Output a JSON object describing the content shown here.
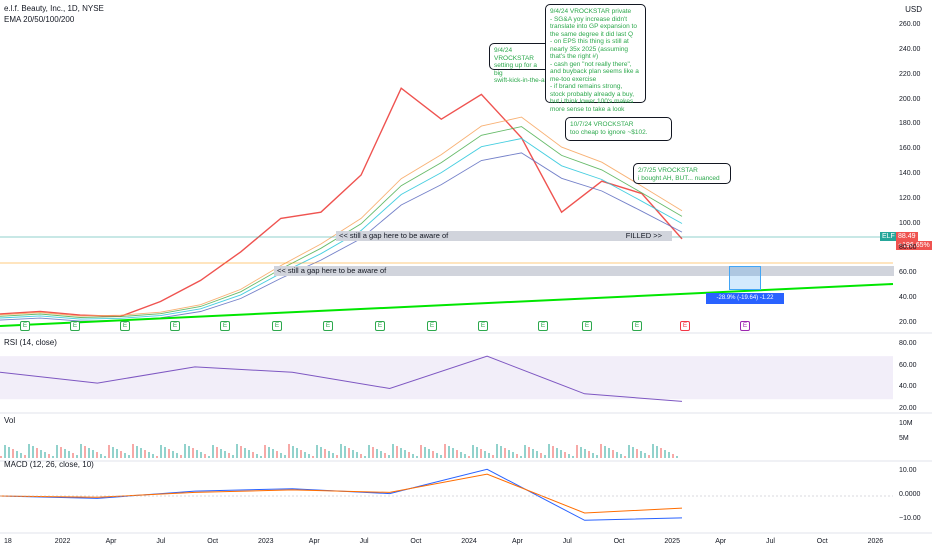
{
  "header": {
    "symbol_line": "e.l.f. Beauty, Inc., 1D, NYSE",
    "indicator_line": "EMA 20/50/100/200",
    "currency": "USD"
  },
  "price_axis": [
    "260.00",
    "240.00",
    "220.00",
    "200.00",
    "180.00",
    "160.00",
    "140.00",
    "120.00",
    "100.00",
    "80.00",
    "60.00",
    "40.00",
    "20.00"
  ],
  "rsi_axis": [
    "80.00",
    "60.00",
    "40.00",
    "20.00"
  ],
  "vol_axis": [
    "10M",
    "5M"
  ],
  "macd_axis": [
    "10.00",
    "0.0000",
    "−10.00"
  ],
  "time_axis": [
    "18",
    "2022",
    "Apr",
    "Jul",
    "Oct",
    "2023",
    "Apr",
    "Jul",
    "Oct",
    "2024",
    "Apr",
    "Jul",
    "Oct",
    "2025",
    "Apr",
    "Jul",
    "Oct",
    "2026"
  ],
  "last_price_tag": {
    "symbol": "ELF",
    "price": "88.49",
    "change": "+196.65%"
  },
  "panes": {
    "rsi_title": "RSI (14, close)",
    "vol_title": "Vol",
    "macd_title": "MACD (12, 26, close, 10)"
  },
  "annotations": {
    "gap_upper": "<< still a gap here to be aware of",
    "gap_upper_filled": "FILLED >>",
    "gap_lower": "<< still a gap here to be aware of",
    "callout_1": "9/4/24 VROCKSTAR\nsetting up for a big\nswift-kick-in-the-a",
    "callout_2": "9/4/24 VROCKSTAR private\n- SG&A yoy increase didn't\ntranslate into GP expansion to\nthe same degree it did last Q\n- on EPS this thing is still at\nnearly 35x 2025 (assuming\nthat's the right #)\n- cash gen \"not really there\",\nand buyback plan seems like a\nme-too exercise\n- if brand remains strong,\nstock probably already a buy,\nbut i think lower 100's makes\nmore sense to take a look",
    "callout_3": "10/7/24 VROCKSTAR\ntoo cheap to ignore ~$102.",
    "callout_4": "2/7/25 VROCKSTAR\ni bought AH, BUT... nuanced",
    "measure_label": "-28.9% (-19.64) -1.22"
  },
  "earnings_markers": [
    "E",
    "E",
    "E",
    "E",
    "E",
    "E",
    "E",
    "E",
    "E",
    "E",
    "E",
    "E",
    "E",
    "E",
    "E"
  ],
  "colors": {
    "price": "#ef5350",
    "ema20": "#f7a35c",
    "ema50": "#4caf50",
    "ema100": "#26c6da",
    "ema200": "#5c6bc0",
    "trendline": "#00e600",
    "rsi": "#7e57c2",
    "macd": "#2962ff",
    "signal": "#ff6d00"
  },
  "chart_data": [
    {
      "type": "line",
      "name": "price",
      "x": [
        "2021-09",
        "2021-12",
        "2022-03",
        "2022-06",
        "2022-09",
        "2022-12",
        "2023-03",
        "2023-06",
        "2023-09",
        "2023-12",
        "2024-03",
        "2024-05",
        "2024-06",
        "2024-08",
        "2024-10",
        "2024-12",
        "2025-01",
        "2025-02"
      ],
      "series": [
        {
          "name": "ELF",
          "values": [
            28,
            30,
            27,
            26,
            38,
            55,
            78,
            105,
            110,
            140,
            210,
            185,
            205,
            170,
            110,
            135,
            125,
            88.49
          ]
        }
      ],
      "ylim": [
        15,
        265
      ]
    },
    {
      "type": "line",
      "name": "rsi",
      "x": [
        "2021-09",
        "2022-03",
        "2022-09",
        "2023-03",
        "2023-09",
        "2024-03",
        "2024-09",
        "2025-02"
      ],
      "series": [
        {
          "name": "RSI",
          "values": [
            55,
            45,
            60,
            55,
            40,
            70,
            35,
            28
          ]
        }
      ],
      "ylim": [
        20,
        85
      ]
    },
    {
      "type": "line",
      "name": "macd",
      "x": [
        "2021-09",
        "2022-03",
        "2022-09",
        "2023-03",
        "2023-09",
        "2024-03",
        "2024-09",
        "2025-02"
      ],
      "series": [
        {
          "name": "MACD",
          "values": [
            0,
            -1,
            2,
            3,
            1,
            11,
            -10,
            -9
          ]
        },
        {
          "name": "Signal",
          "values": [
            0,
            -0.5,
            1.5,
            2.5,
            1.5,
            9,
            -7,
            -5
          ]
        }
      ],
      "ylim": [
        -14,
        14
      ]
    }
  ]
}
